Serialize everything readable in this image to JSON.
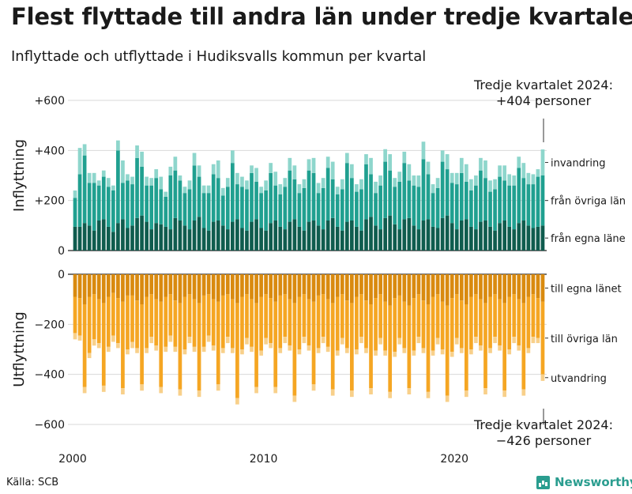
{
  "title": "Flest flyttade till andra län under tredje kvartalet",
  "subtitle": "Inflyttade och utflyttade i Hudiksvalls kommun per kvartal",
  "source": "Källa: SCB",
  "brand": "Newsworthy",
  "colors": {
    "in_egna": "#0f5c4e",
    "in_ovriga": "#20a090",
    "in_invandring": "#8ed6cc",
    "ut_egna": "#d98a0f",
    "ut_ovriga": "#f5a623",
    "ut_utvandring": "#f8d08a"
  },
  "chart_data": {
    "type": "bar",
    "stacked": true,
    "x_start": "2000 Q1",
    "x_end": "2024 Q3",
    "x_ticks": [
      {
        "year": 2000,
        "label": "2000"
      },
      {
        "year": 2010,
        "label": "2010"
      },
      {
        "year": 2020,
        "label": "2020"
      }
    ],
    "panels": [
      {
        "ylabel": "Inflyttning",
        "ylim": [
          0,
          600
        ],
        "ticks": [
          {
            "value": 600,
            "label": "+600"
          },
          {
            "value": 400,
            "label": "+400"
          },
          {
            "value": 200,
            "label": "+200"
          },
          {
            "value": 0,
            "label": "0"
          }
        ],
        "annotation": [
          "Tredje kvartalet 2024:",
          "+404 personer"
        ],
        "series": [
          {
            "name": "från egna läne",
            "color_key": "in_egna",
            "values": [
              95,
              95,
              110,
              100,
              80,
              120,
              125,
              95,
              75,
              110,
              125,
              90,
              100,
              130,
              140,
              115,
              85,
              110,
              105,
              95,
              85,
              130,
              120,
              100,
              85,
              120,
              135,
              90,
              80,
              115,
              120,
              100,
              85,
              115,
              125,
              90,
              80,
              115,
              125,
              90,
              80,
              110,
              120,
              95,
              85,
              115,
              125,
              95,
              80,
              115,
              120,
              100,
              85,
              120,
              130,
              95,
              80,
              115,
              120,
              95,
              80,
              125,
              135,
              100,
              85,
              130,
              140,
              105,
              85,
              125,
              130,
              100,
              85,
              120,
              125,
              95,
              90,
              130,
              140,
              110,
              85,
              120,
              125,
              95,
              85,
              115,
              120,
              95,
              80,
              110,
              120,
              95,
              85,
              110,
              120,
              100,
              90,
              95,
              100
            ]
          },
          {
            "name": "från övriga län",
            "color_key": "in_ovriga",
            "values": [
              115,
              210,
              270,
              170,
              190,
              140,
              170,
              160,
              165,
              290,
              145,
              190,
              165,
              240,
              195,
              145,
              175,
              180,
              140,
              120,
              215,
              190,
              160,
              130,
              160,
              220,
              160,
              140,
              150,
              190,
              170,
              120,
              170,
              235,
              140,
              165,
              165,
              195,
              150,
              140,
              160,
              200,
              140,
              130,
              170,
              205,
              160,
              135,
              170,
              205,
              190,
              130,
              165,
              210,
              155,
              130,
              165,
              235,
              170,
              140,
              165,
              220,
              170,
              130,
              175,
              225,
              180,
              150,
              190,
              225,
              150,
              160,
              170,
              245,
              180,
              135,
              160,
              225,
              185,
              160,
              180,
              190,
              150,
              145,
              175,
              205,
              170,
              140,
              165,
              185,
              160,
              165,
              175,
              220,
              170,
              165,
              175,
              200,
              200
            ]
          },
          {
            "name": "invandring",
            "color_key": "in_invandring",
            "values": [
              30,
              105,
              45,
              40,
              40,
              20,
              25,
              35,
              20,
              40,
              90,
              25,
              30,
              50,
              60,
              35,
              30,
              35,
              50,
              20,
              35,
              55,
              20,
              25,
              35,
              50,
              45,
              30,
              30,
              40,
              70,
              30,
              35,
              50,
              45,
              40,
              35,
              30,
              55,
              25,
              40,
              40,
              55,
              40,
              35,
              50,
              55,
              35,
              35,
              45,
              60,
              40,
              40,
              45,
              70,
              30,
              40,
              40,
              55,
              30,
              40,
              40,
              65,
              45,
              40,
              50,
              65,
              35,
              40,
              45,
              65,
              40,
              45,
              70,
              50,
              35,
              40,
              45,
              60,
              40,
              45,
              60,
              70,
              45,
              40,
              50,
              70,
              45,
              40,
              45,
              60,
              45,
              40,
              45,
              60,
              45,
              40,
              30,
              104
            ]
          }
        ]
      },
      {
        "ylabel": "Utflyttning",
        "ylim": [
          -600,
          0
        ],
        "ticks": [
          {
            "value": 0,
            "label": "0"
          },
          {
            "value": -200,
            "label": "−200"
          },
          {
            "value": -400,
            "label": "−400"
          },
          {
            "value": -600,
            "label": "−600"
          }
        ],
        "annotation": [
          "Tredje kvartalet 2024:",
          "−426 personer"
        ],
        "series": [
          {
            "name": "till egna länet",
            "color_key": "ut_egna",
            "values": [
              -90,
              -95,
              -120,
              -90,
              -80,
              -100,
              -115,
              -90,
              -75,
              -95,
              -110,
              -85,
              -85,
              -105,
              -120,
              -90,
              -80,
              -100,
              -110,
              -90,
              -80,
              -105,
              -115,
              -90,
              -80,
              -100,
              -115,
              -85,
              -80,
              -100,
              -110,
              -85,
              -80,
              -100,
              -115,
              -90,
              -80,
              -100,
              -115,
              -90,
              -80,
              -95,
              -110,
              -85,
              -80,
              -100,
              -115,
              -90,
              -80,
              -100,
              -110,
              -85,
              -80,
              -100,
              -115,
              -90,
              -80,
              -105,
              -115,
              -90,
              -80,
              -105,
              -120,
              -95,
              -80,
              -110,
              -125,
              -95,
              -85,
              -110,
              -125,
              -95,
              -80,
              -105,
              -120,
              -90,
              -80,
              -110,
              -125,
              -95,
              -80,
              -105,
              -120,
              -90,
              -80,
              -100,
              -115,
              -90,
              -80,
              -100,
              -115,
              -90,
              -80,
              -100,
              -115,
              -90,
              -80,
              -95,
              -110
            ]
          },
          {
            "name": "till övriga län",
            "color_key": "ut_ovriga",
            "values": [
              -145,
              -150,
              -330,
              -225,
              -180,
              -175,
              -330,
              -200,
              -170,
              -180,
              -345,
              -215,
              -185,
              -190,
              -320,
              -205,
              -170,
              -185,
              -340,
              -200,
              -165,
              -185,
              -345,
              -210,
              -170,
              -190,
              -350,
              -205,
              -165,
              -185,
              -330,
              -210,
              -170,
              -195,
              -380,
              -210,
              -175,
              -190,
              -335,
              -215,
              -175,
              -180,
              -340,
              -210,
              -170,
              -185,
              -370,
              -210,
              -170,
              -185,
              -330,
              -210,
              -170,
              -190,
              -345,
              -215,
              -175,
              -190,
              -350,
              -210,
              -170,
              -190,
              -335,
              -210,
              -175,
              -195,
              -345,
              -215,
              -170,
              -185,
              -330,
              -210,
              -170,
              -190,
              -350,
              -215,
              -175,
              -190,
              -360,
              -215,
              -175,
              -190,
              -345,
              -210,
              -170,
              -185,
              -340,
              -205,
              -170,
              -185,
              -350,
              -210,
              -170,
              -185,
              -345,
              -205,
              -170,
              -160,
              -290
            ]
          },
          {
            "name": "utvandring",
            "color_key": "ut_utvandring",
            "values": [
              -25,
              -20,
              -25,
              -20,
              -25,
              -20,
              -25,
              -20,
              -25,
              -20,
              -25,
              -20,
              -25,
              -20,
              -25,
              -20,
              -25,
              -20,
              -25,
              -20,
              -25,
              -20,
              -25,
              -20,
              -25,
              -20,
              -25,
              -20,
              -25,
              -20,
              -25,
              -20,
              -25,
              -20,
              -25,
              -20,
              -25,
              -20,
              -25,
              -20,
              -25,
              -20,
              -25,
              -20,
              -25,
              -20,
              -25,
              -20,
              -25,
              -20,
              -25,
              -20,
              -25,
              -20,
              -25,
              -20,
              -25,
              -20,
              -25,
              -20,
              -25,
              -20,
              -25,
              -20,
              -25,
              -20,
              -25,
              -20,
              -25,
              -20,
              -25,
              -20,
              -25,
              -20,
              -25,
              -20,
              -25,
              -20,
              -25,
              -20,
              -25,
              -20,
              -25,
              -20,
              -25,
              -20,
              -25,
              -20,
              -25,
              -20,
              -25,
              -20,
              -25,
              -20,
              -25,
              -20,
              -25,
              -20,
              -26
            ]
          }
        ]
      }
    ]
  }
}
